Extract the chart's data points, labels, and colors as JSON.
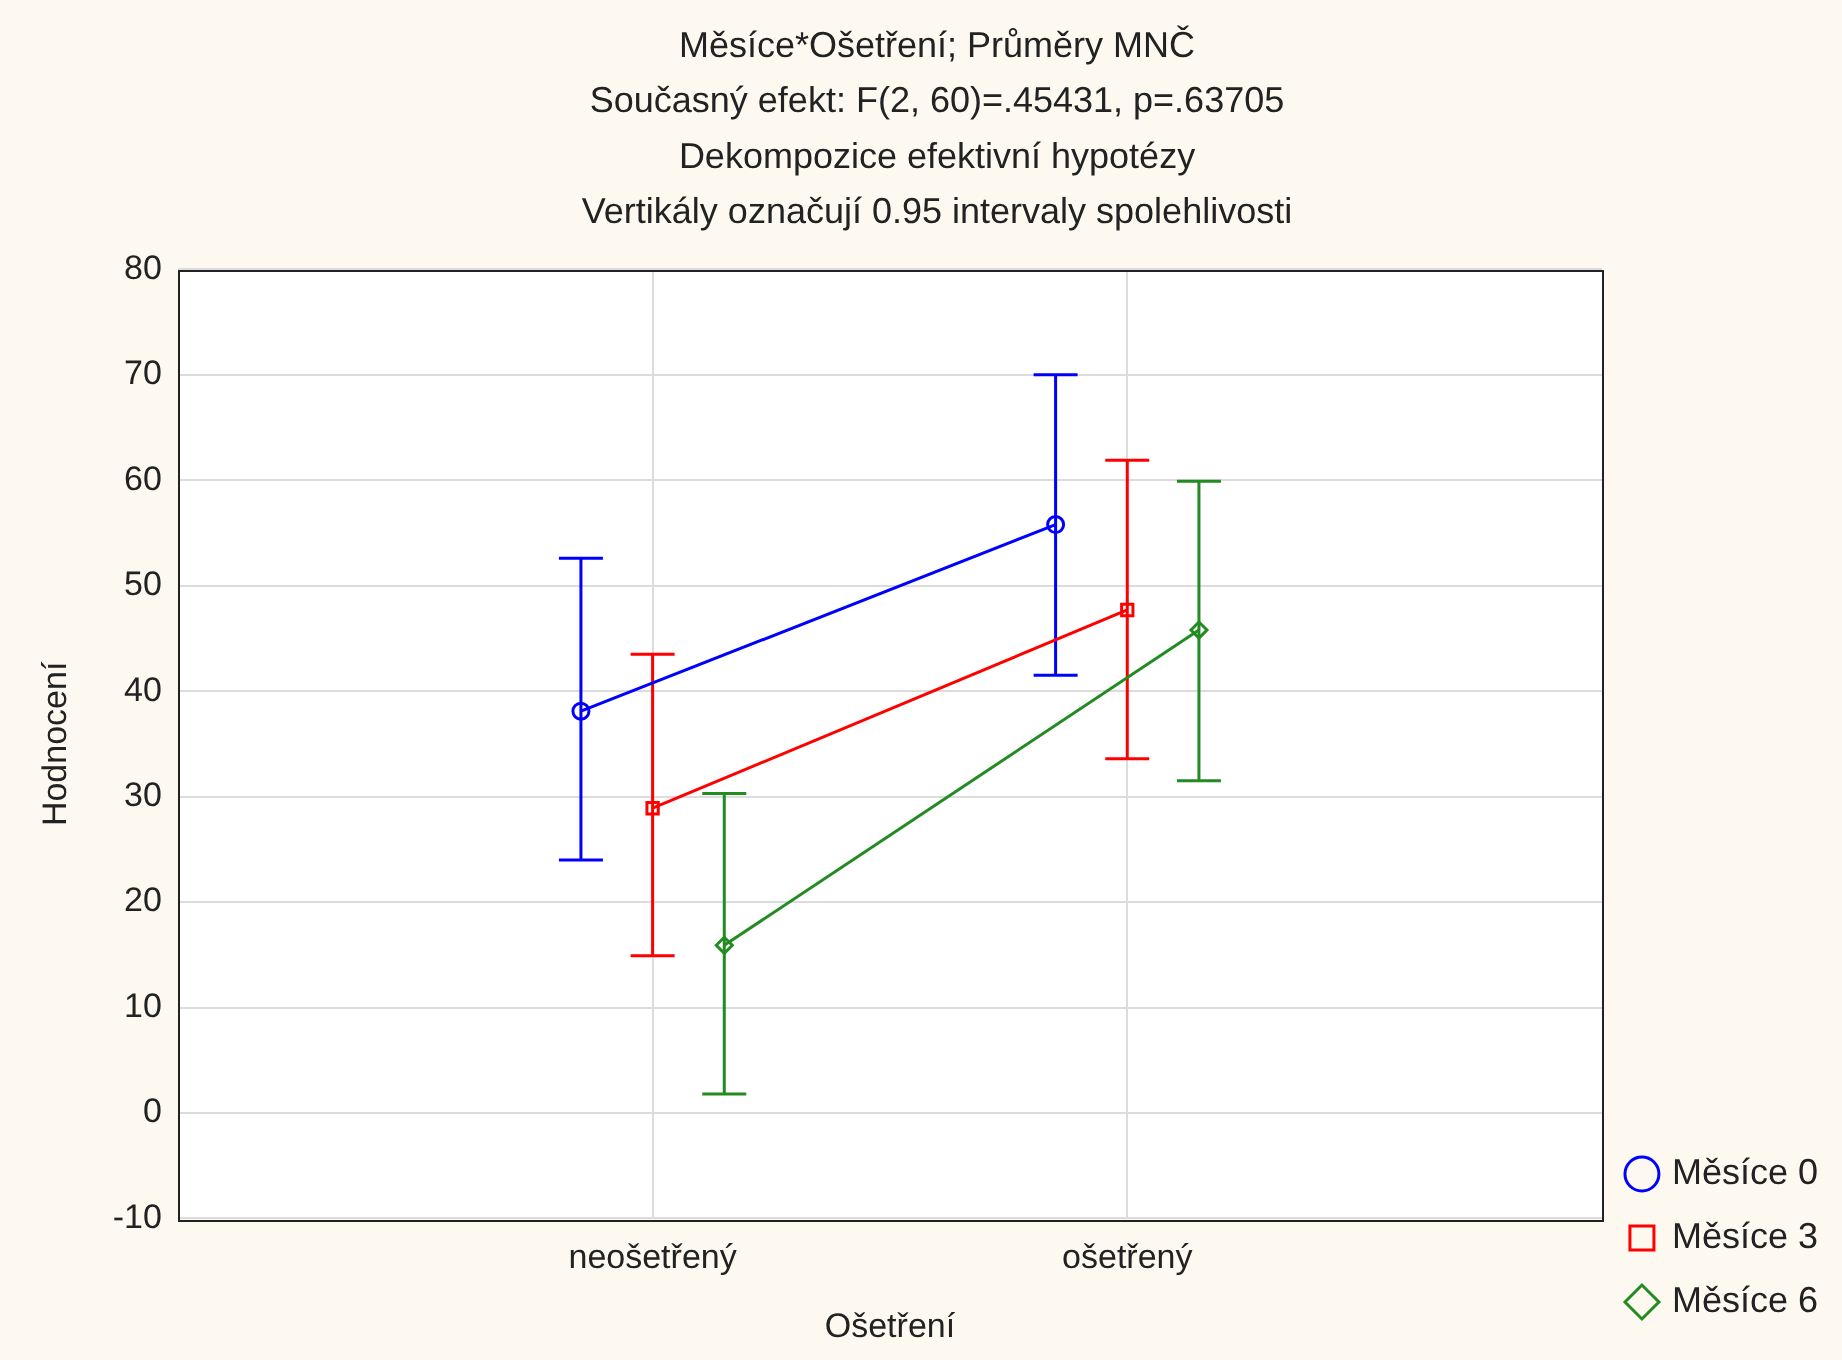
{
  "chart_data": {
    "type": "line",
    "title": "Měsíce*Ošetření; Průměry MNČ",
    "subtitle": "Současný efekt: F(2, 60)=.45431, p=.63705\nDekompozice efektivní hypotézy\nVertikály označují 0.95 intervaly spolehlivosti",
    "xlabel": "Ošetření",
    "ylabel": "Hodnocení",
    "categories": [
      "neošetřený",
      "ošetřený"
    ],
    "series": [
      {
        "name": "Měsíce 0",
        "color": "#0000ff",
        "marker": "circle",
        "values": [
          38.1,
          55.8
        ],
        "errors": [
          [
            24,
            52.6
          ],
          [
            41.5,
            70
          ]
        ]
      },
      {
        "name": "Měsíce 3",
        "color": "#ff0000",
        "marker": "square",
        "values": [
          28.9,
          47.7
        ],
        "errors": [
          [
            14.9,
            43.5
          ],
          [
            33.6,
            61.9
          ]
        ]
      },
      {
        "name": "Měsíce 6",
        "color": "#228b22",
        "marker": "diamond",
        "values": [
          15.9,
          45.8
        ],
        "errors": [
          [
            1.8,
            30.3
          ],
          [
            31.5,
            59.9
          ]
        ]
      }
    ],
    "ylim": [
      -10,
      80
    ],
    "yticks": [
      -10,
      0,
      10,
      20,
      30,
      40,
      50,
      60,
      70,
      80
    ],
    "grid": true,
    "legend": "bottom right"
  }
}
